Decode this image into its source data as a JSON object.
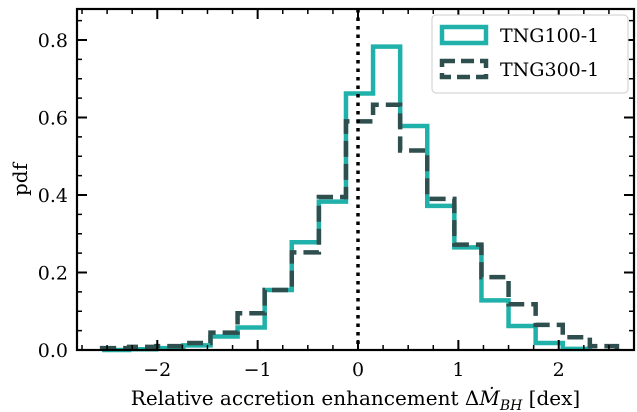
{
  "chart_data": {
    "type": "histogram",
    "xlabel": "Relative accretion enhancement ΔṀBH [dex]",
    "xlabel_parts": {
      "prefix": "Relative accretion enhancement Δ",
      "symbol": "Ṁ",
      "subscript": "BH",
      "suffix": " [dex]"
    },
    "ylabel": "pdf",
    "xlim": [
      -2.8,
      2.75
    ],
    "ylim": [
      0,
      0.88
    ],
    "xticks": [
      -2,
      -1,
      0,
      1,
      2
    ],
    "xtick_labels": [
      "−2",
      "−1",
      "0",
      "1",
      "2"
    ],
    "yticks": [
      0.0,
      0.2,
      0.4,
      0.6,
      0.8
    ],
    "ytick_labels": [
      "0.0",
      "0.2",
      "0.4",
      "0.6",
      "0.8"
    ],
    "vline_x": 0,
    "grid": false,
    "legend_position": "top-right",
    "series": [
      {
        "name": "TNG100-1",
        "color": "#20b2aa",
        "linestyle": "solid",
        "bin_edges": [
          -2.55,
          -2.28,
          -2.01,
          -1.74,
          -1.47,
          -1.2,
          -0.93,
          -0.66,
          -0.39,
          -0.12,
          0.15,
          0.42,
          0.69,
          0.96,
          1.23,
          1.5,
          1.77,
          2.04,
          2.31
        ],
        "values": [
          0.0,
          0.002,
          0.005,
          0.012,
          0.035,
          0.058,
          0.155,
          0.278,
          0.383,
          0.662,
          0.783,
          0.578,
          0.372,
          0.265,
          0.128,
          0.062,
          0.018,
          0.003
        ]
      },
      {
        "name": "TNG300-1",
        "color": "#2f4f4f",
        "linestyle": "dashed",
        "bin_edges": [
          -2.55,
          -2.28,
          -2.01,
          -1.74,
          -1.47,
          -1.2,
          -0.93,
          -0.66,
          -0.39,
          -0.12,
          0.15,
          0.42,
          0.69,
          0.96,
          1.23,
          1.5,
          1.77,
          2.04,
          2.31,
          2.58
        ],
        "values": [
          0.005,
          0.008,
          0.01,
          0.018,
          0.045,
          0.095,
          0.155,
          0.252,
          0.395,
          0.59,
          0.633,
          0.515,
          0.39,
          0.272,
          0.188,
          0.118,
          0.065,
          0.033,
          0.01
        ]
      }
    ]
  }
}
